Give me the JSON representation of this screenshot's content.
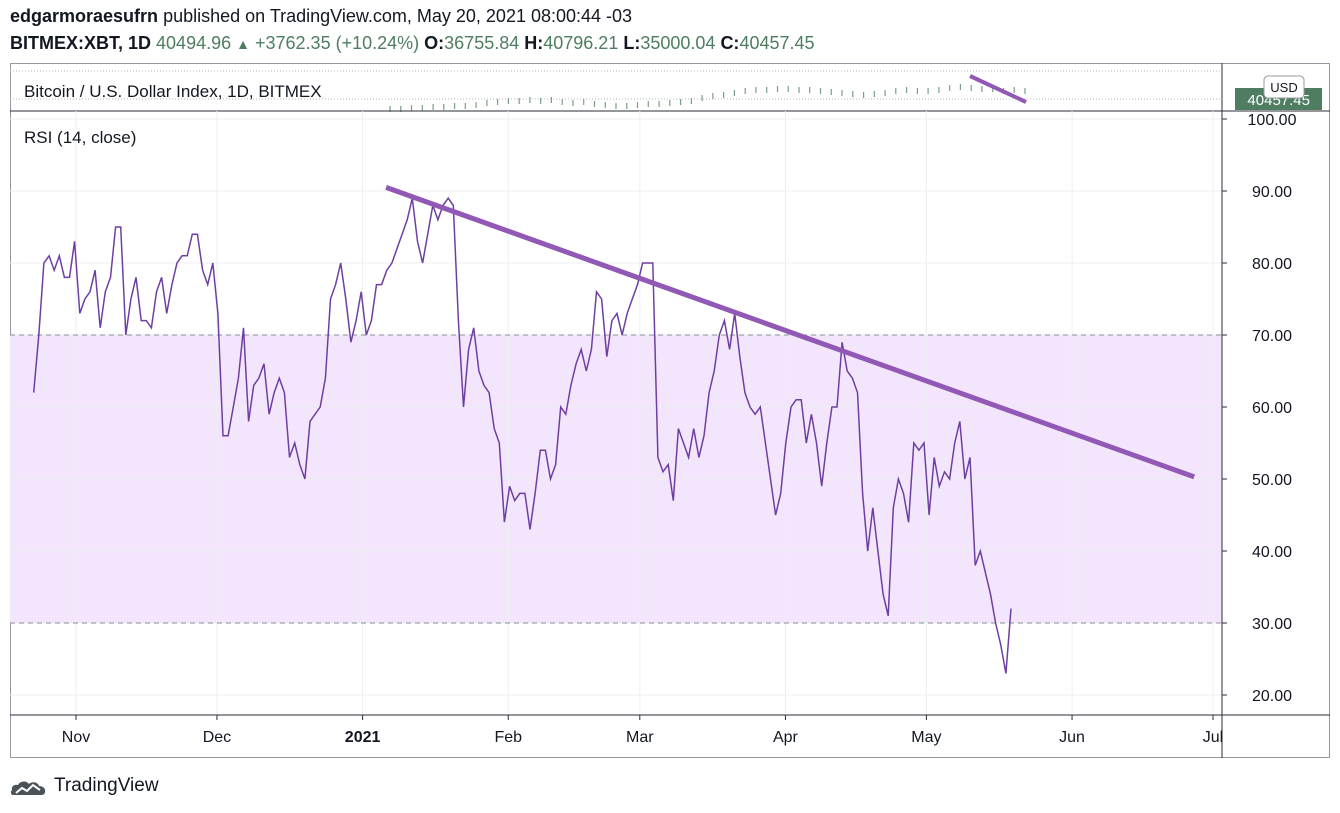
{
  "header": {
    "author": "edgarmoraesufrn",
    "published_text": "published on TradingView.com, May 20, 2021 08:00:44 -03",
    "symbol": "BITMEX:XBT, 1D",
    "last": "40494.96",
    "change": "+3762.35 (+10.24%)",
    "o_label": "O:",
    "o_value": "36755.84",
    "h_label": "H:",
    "h_value": "40796.21",
    "l_label": "L:",
    "l_value": "35000.04",
    "c_label": "C:",
    "c_value": "40457.45"
  },
  "price_pane": {
    "title": "Bitcoin / U.S. Dollar Index, 1D, BITMEX",
    "currency": "USD",
    "last_price_tag": "40457.45",
    "tag_color": "#4e7d61"
  },
  "chart_data": {
    "type": "line",
    "title": "RSI (14, close)",
    "series": [
      {
        "values": [
          62,
          70,
          80,
          81,
          79,
          81,
          78,
          78,
          83,
          73,
          75,
          76,
          79,
          71,
          76,
          78,
          85,
          85,
          70,
          75,
          78,
          72,
          72,
          71,
          76,
          78,
          73,
          77,
          80,
          81,
          81,
          84,
          84,
          79,
          77,
          80,
          73,
          56,
          56,
          60,
          64,
          71,
          58,
          63,
          64,
          66,
          59,
          62,
          64,
          62,
          53,
          55,
          52,
          50,
          58,
          59,
          60,
          64,
          75,
          77,
          80,
          75,
          69,
          72,
          76,
          70,
          72,
          77,
          77,
          79,
          80,
          82,
          84,
          86,
          89,
          83,
          80,
          84,
          88,
          86,
          88,
          89,
          88,
          72,
          60,
          68,
          71,
          65,
          63,
          62,
          57,
          55,
          44,
          49,
          47,
          48,
          48,
          43,
          48,
          54,
          54,
          50,
          52,
          60,
          59,
          63,
          66,
          68,
          65,
          68,
          76,
          75,
          67,
          72,
          73,
          70,
          73,
          75,
          77,
          80,
          80,
          80,
          53,
          51,
          52,
          47,
          57,
          55,
          53,
          57,
          53,
          56,
          62,
          65,
          70,
          72,
          68,
          73,
          67,
          62,
          60,
          59,
          60,
          55,
          50,
          45,
          48,
          55,
          60,
          61,
          61,
          55,
          59,
          55,
          49,
          55,
          60,
          60,
          69,
          65,
          64,
          62,
          48,
          40,
          46,
          40,
          34,
          31,
          46,
          50,
          48,
          44,
          55,
          54,
          55,
          45,
          53,
          49,
          51,
          50,
          55,
          58,
          50,
          53,
          38,
          40,
          37,
          34,
          30,
          27,
          23,
          32
        ]
      }
    ],
    "trendline": {
      "start": {
        "x": "2021-01-06",
        "y": 90.5
      },
      "end": {
        "x": "2021-06-27",
        "y": 50.3
      }
    },
    "y_ticks": [
      "100.00",
      "90.00",
      "80.00",
      "70.00",
      "60.00",
      "50.00",
      "40.00",
      "30.00",
      "20.00"
    ],
    "ylim": [
      20,
      100
    ],
    "x_ticks": [
      "Nov",
      "Dec",
      "2021",
      "Feb",
      "Mar",
      "Apr",
      "May",
      "Jun",
      "Jul"
    ],
    "overbought": 70,
    "oversold": 30,
    "grid": true,
    "colors": {
      "line": "#6e3fa3",
      "band": "#f3e6fc",
      "trend": "#9158b5",
      "grid": "#eceff2",
      "axis": "#2a2e39"
    }
  },
  "footer": {
    "brand": "TradingView",
    "logo_icon": "tradingview-cloud-icon"
  }
}
